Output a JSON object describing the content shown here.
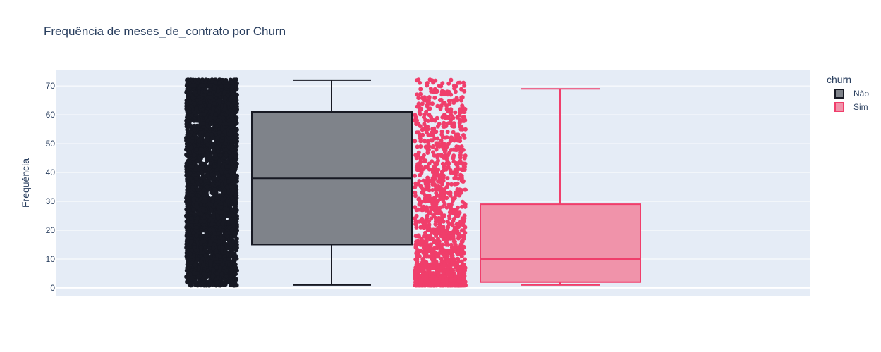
{
  "chart_data": {
    "type": "box",
    "title": "Frequência de meses_de_contrato por Churn",
    "xlabel": "",
    "ylabel": "Frequência",
    "ylim": [
      -2.7,
      75.4
    ],
    "yticks": [
      0,
      10,
      20,
      30,
      40,
      50,
      60,
      70
    ],
    "grid": true,
    "legend_title": "churn",
    "legend_position": "top-right",
    "plot_background": "#e5ecf6",
    "series": [
      {
        "name": "Não",
        "color": "#171923",
        "fill": "#7f838a",
        "points": "all",
        "lowerfence": 1,
        "q1": 15,
        "median": 38,
        "q3": 61,
        "upperfence": 72,
        "point_range": [
          1,
          72
        ],
        "point_count": 5174
      },
      {
        "name": "Sim",
        "color": "#f03e6b",
        "fill": "#f093aa",
        "points": "all",
        "lowerfence": 1,
        "q1": 2,
        "median": 10,
        "q3": 29,
        "upperfence": 69,
        "point_range": [
          1,
          72
        ],
        "point_count": 1869
      }
    ]
  }
}
